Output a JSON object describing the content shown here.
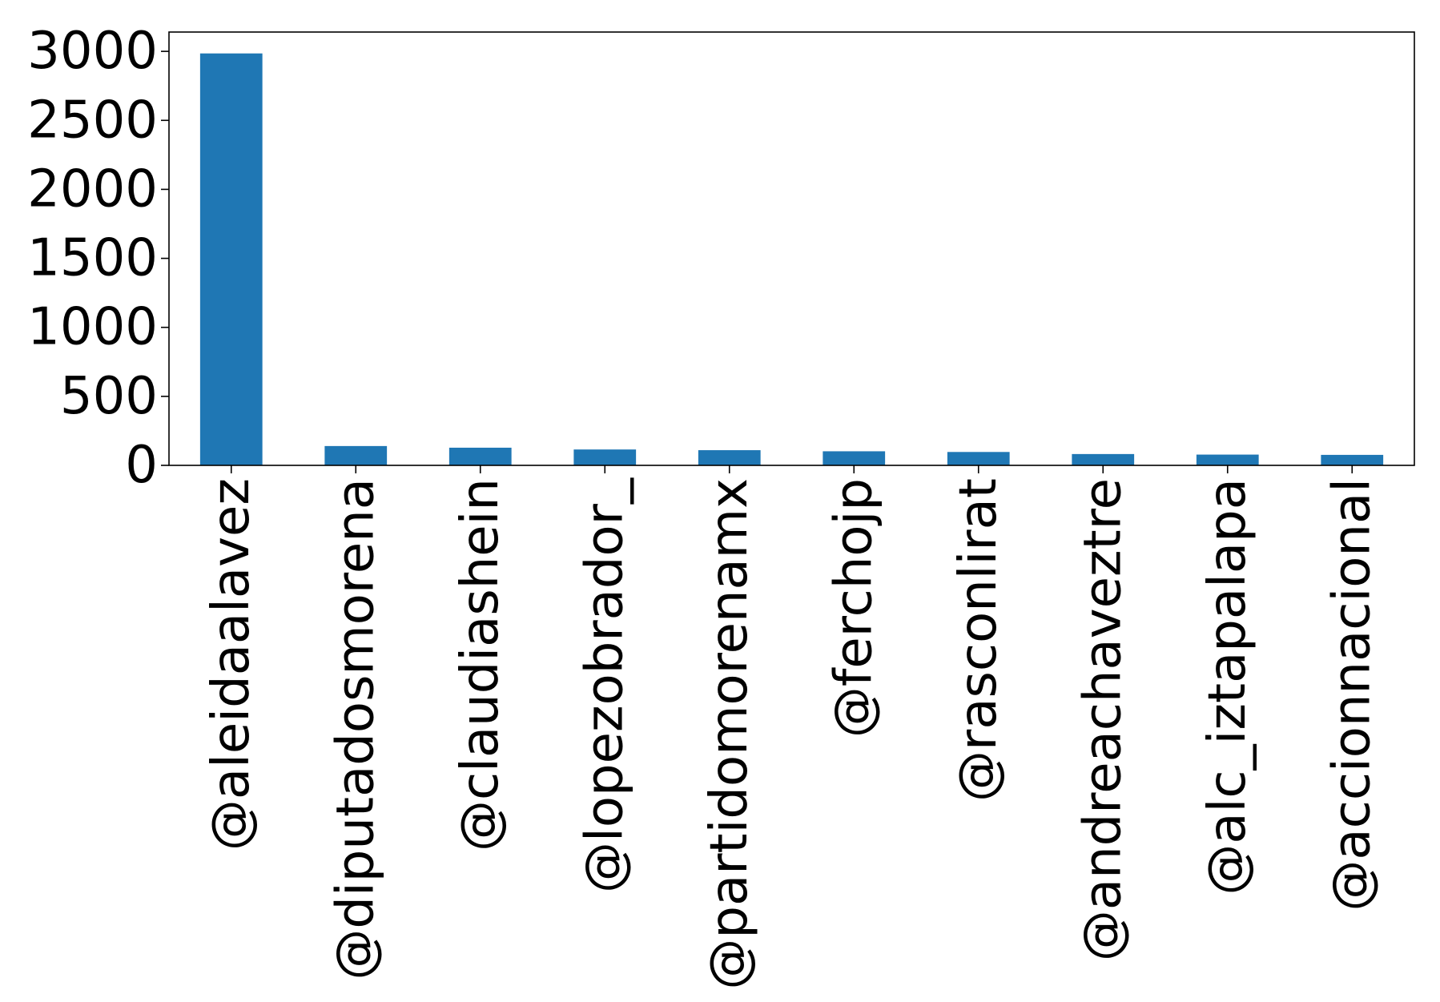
{
  "chart_data": {
    "type": "bar",
    "title": "",
    "xlabel": "",
    "ylabel": "",
    "categories": [
      "@aleidaalavez",
      "@diputadosmorena",
      "@claudiashein",
      "@lopezobrador_",
      "@partidomorenamx",
      "@ferchojp",
      "@rasconlirat",
      "@andreachaveztre",
      "@alc_iztapalapa",
      "@accionnacional"
    ],
    "values": [
      2985,
      140,
      128,
      115,
      110,
      102,
      97,
      82,
      78,
      76
    ],
    "ylim": [
      0,
      3140
    ],
    "yticks": [
      0,
      500,
      1000,
      1500,
      2000,
      2500,
      3000
    ],
    "bar_color": "#1f77b4",
    "grid": false,
    "legend": false
  }
}
